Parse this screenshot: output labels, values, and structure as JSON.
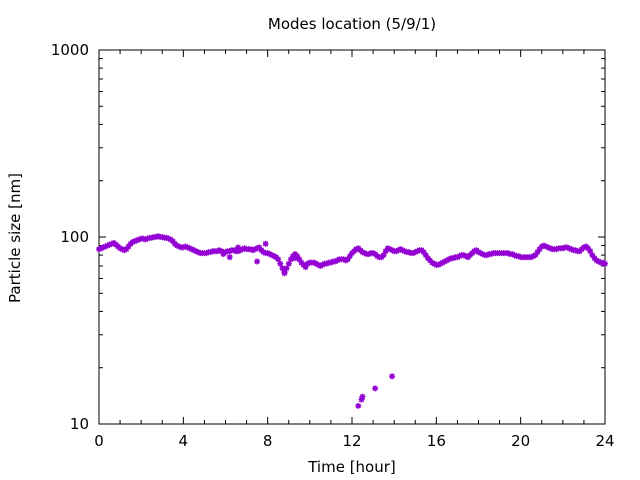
{
  "chart_data": {
    "type": "scatter",
    "title": "Modes location (5/9/1)",
    "xlabel": "Time [hour]",
    "ylabel": "Particle size [nm]",
    "xlim": [
      0,
      24
    ],
    "ylim": [
      10,
      1000
    ],
    "yscale": "log",
    "xticks": [
      "0",
      "4",
      "8",
      "12",
      "16",
      "20",
      "24"
    ],
    "yticks": [
      "10",
      "100",
      "1000"
    ],
    "grid": false,
    "legend": "none",
    "marker_color": "#9400d3",
    "series": [
      {
        "x": [
          0.0,
          0.1,
          0.2,
          0.3,
          0.4,
          0.5,
          0.6,
          0.7,
          0.8,
          0.9,
          1.0,
          1.1,
          1.2,
          1.3,
          1.4,
          1.5,
          1.6,
          1.7,
          1.8,
          1.9,
          2.0,
          2.1,
          2.2,
          2.3,
          2.4,
          2.5,
          2.6,
          2.7,
          2.8,
          2.9,
          3.0,
          3.1,
          3.2,
          3.3,
          3.4,
          3.5,
          3.6,
          3.7,
          3.8,
          3.9,
          4.0,
          4.1,
          4.2,
          4.3,
          4.4,
          4.5,
          4.6,
          4.7,
          4.8,
          4.9,
          5.0,
          5.1,
          5.2,
          5.3,
          5.4,
          5.5,
          5.6,
          5.7,
          5.8,
          5.9,
          6.0,
          6.1,
          6.2,
          6.3,
          6.4,
          6.5,
          6.6,
          6.7,
          6.8,
          6.9,
          7.0,
          7.1,
          7.2,
          7.3,
          7.4,
          7.5,
          7.6,
          7.7,
          7.8,
          7.9,
          8.0,
          8.1,
          8.2,
          8.3,
          8.4,
          8.5,
          8.6,
          8.7,
          8.8,
          8.9,
          9.0,
          9.1,
          9.2,
          9.3,
          9.4,
          9.5,
          9.6,
          9.7,
          9.8,
          9.9,
          10.0,
          10.1,
          10.2,
          10.3,
          10.4,
          10.5,
          10.6,
          10.7,
          10.8,
          10.9,
          11.0,
          11.1,
          11.2,
          11.3,
          11.4,
          11.5,
          11.6,
          11.7,
          11.8,
          11.9,
          12.0,
          12.1,
          12.2,
          12.3,
          12.4,
          12.5,
          12.6,
          12.7,
          12.8,
          12.9,
          13.0,
          13.1,
          13.2,
          13.3,
          13.4,
          13.5,
          13.6,
          13.7,
          13.8,
          13.9,
          14.0,
          14.1,
          14.2,
          14.3,
          14.4,
          14.5,
          14.6,
          14.7,
          14.8,
          14.9,
          15.0,
          15.1,
          15.2,
          15.3,
          15.4,
          15.5,
          15.6,
          15.7,
          15.8,
          15.9,
          16.0,
          16.1,
          16.2,
          16.3,
          16.4,
          16.5,
          16.6,
          16.7,
          16.8,
          16.9,
          17.0,
          17.1,
          17.2,
          17.3,
          17.4,
          17.5,
          17.6,
          17.7,
          17.8,
          17.9,
          18.0,
          18.1,
          18.2,
          18.3,
          18.4,
          18.5,
          18.6,
          18.7,
          18.8,
          18.9,
          19.0,
          19.1,
          19.2,
          19.3,
          19.4,
          19.5,
          19.6,
          19.7,
          19.8,
          19.9,
          20.0,
          20.1,
          20.2,
          20.3,
          20.4,
          20.5,
          20.6,
          20.7,
          20.8,
          20.9,
          21.0,
          21.1,
          21.2,
          21.3,
          21.4,
          21.5,
          21.6,
          21.7,
          21.8,
          21.9,
          22.0,
          22.1,
          22.2,
          22.3,
          22.4,
          22.5,
          22.6,
          22.7,
          22.8,
          22.9,
          23.0,
          23.1,
          23.2,
          23.3,
          23.4,
          23.5,
          23.6,
          23.7,
          23.8,
          23.9,
          24.0,
          5.9,
          6.2,
          6.6,
          7.5,
          7.9,
          8.8,
          9.3,
          9.8,
          12.3,
          12.45,
          12.5,
          13.1,
          13.9
        ],
        "y": [
          86,
          87,
          88,
          89,
          90,
          91,
          92,
          93,
          91,
          89,
          87,
          86,
          85,
          86,
          89,
          92,
          94,
          95,
          96,
          97,
          98,
          98,
          97,
          98,
          99,
          99,
          100,
          100,
          101,
          100,
          100,
          99,
          99,
          98,
          97,
          95,
          92,
          90,
          89,
          88,
          88,
          89,
          88,
          87,
          86,
          85,
          84,
          83,
          82,
          82,
          82,
          82,
          83,
          83,
          84,
          84,
          84,
          85,
          84,
          83,
          83,
          84,
          84,
          85,
          85,
          84,
          84,
          85,
          86,
          87,
          86,
          86,
          86,
          85,
          86,
          87,
          88,
          85,
          83,
          82,
          82,
          81,
          80,
          79,
          78,
          76,
          72,
          68,
          65,
          68,
          72,
          76,
          79,
          81,
          79,
          76,
          73,
          71,
          71,
          72,
          73,
          73,
          73,
          72,
          71,
          70,
          71,
          72,
          72,
          73,
          73,
          74,
          74,
          75,
          76,
          76,
          76,
          75,
          76,
          79,
          82,
          84,
          86,
          87,
          85,
          83,
          82,
          81,
          81,
          82,
          82,
          81,
          79,
          78,
          78,
          80,
          84,
          87,
          86,
          85,
          84,
          84,
          85,
          86,
          85,
          84,
          83,
          83,
          82,
          82,
          83,
          84,
          85,
          85,
          83,
          80,
          77,
          75,
          73,
          72,
          71,
          71,
          72,
          73,
          74,
          75,
          76,
          77,
          77,
          78,
          78,
          79,
          80,
          80,
          79,
          78,
          80,
          82,
          84,
          85,
          83,
          82,
          81,
          80,
          80,
          81,
          81,
          82,
          82,
          82,
          82,
          82,
          82,
          82,
          82,
          81,
          81,
          80,
          79,
          79,
          78,
          78,
          78,
          78,
          78,
          78,
          79,
          80,
          83,
          86,
          89,
          90,
          89,
          88,
          87,
          86,
          86,
          86,
          87,
          87,
          87,
          88,
          88,
          87,
          86,
          85,
          85,
          84,
          84,
          86,
          88,
          89,
          87,
          84,
          80,
          77,
          75,
          74,
          73,
          73,
          72,
          81,
          78,
          88,
          74,
          92,
          64,
          77,
          69,
          12.5,
          13.5,
          14.0,
          15.5,
          18.0
        ]
      }
    ]
  }
}
